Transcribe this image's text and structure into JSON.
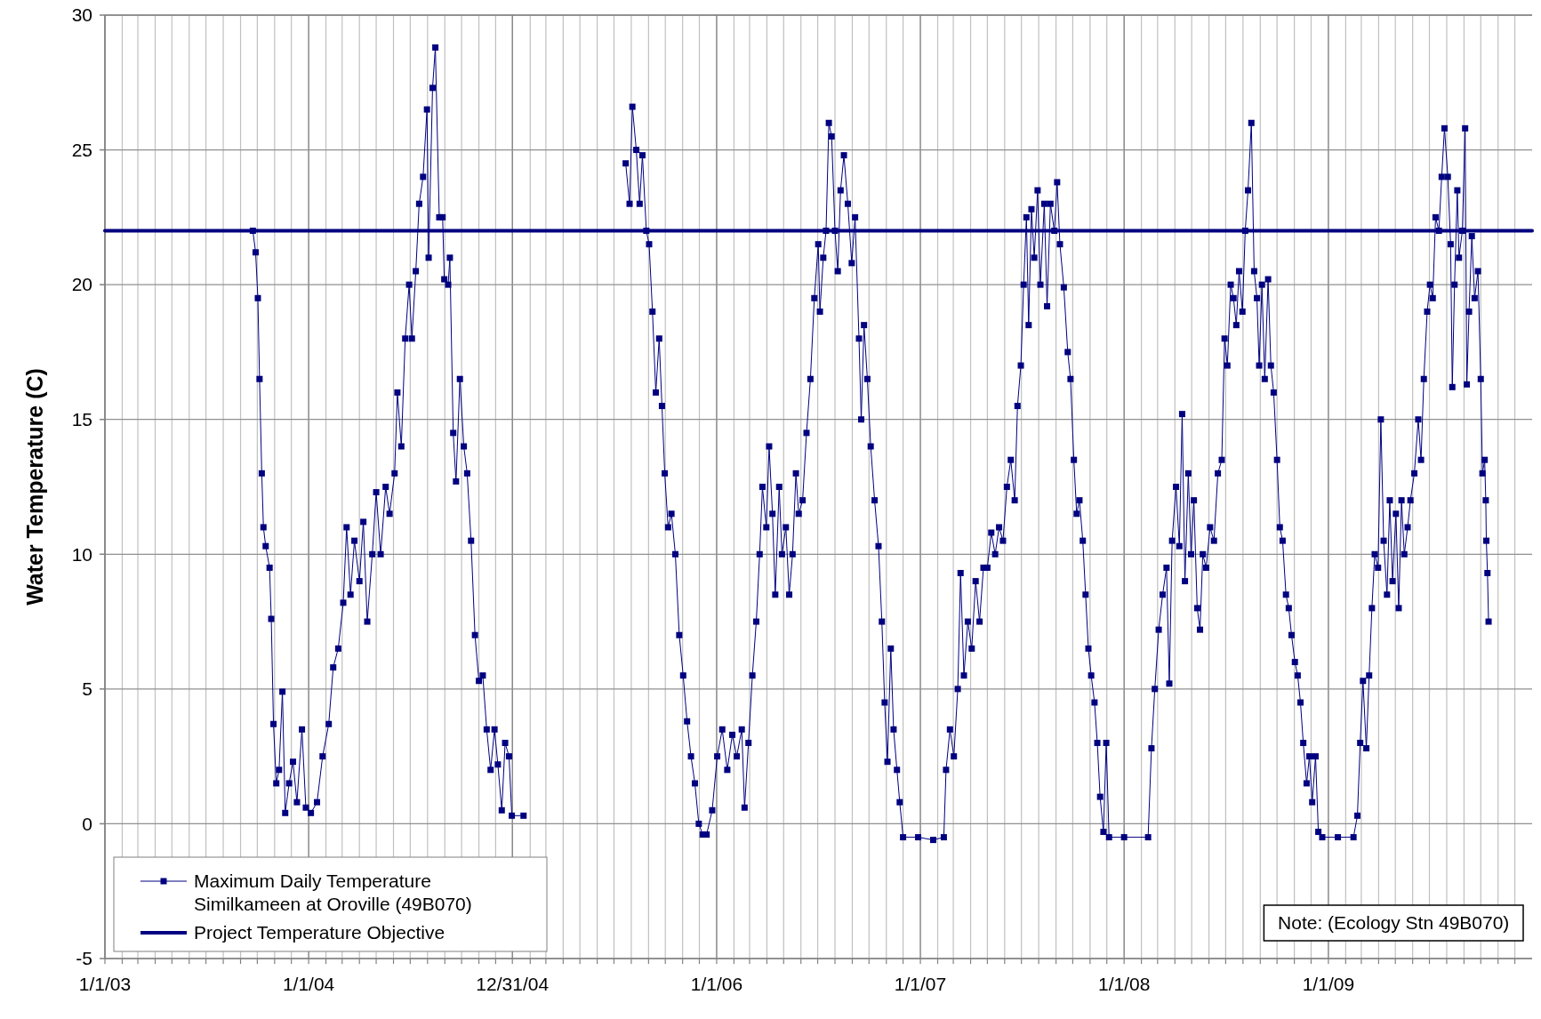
{
  "chart_data": {
    "type": "line",
    "ylabel": "Water Temperature (C)",
    "ylim": [
      -5,
      30
    ],
    "yticks": [
      -5,
      0,
      5,
      10,
      15,
      20,
      25,
      30
    ],
    "xlim": [
      "2003-01-01",
      "2010-01-01"
    ],
    "xticks": [
      {
        "value": "2003-01-01",
        "label": "1/1/03"
      },
      {
        "value": "2003-02-01",
        "label": null
      },
      {
        "value": "2003-03-01",
        "label": null
      },
      {
        "value": "2003-04-01",
        "label": null
      },
      {
        "value": "2003-05-01",
        "label": null
      },
      {
        "value": "2003-06-01",
        "label": null
      },
      {
        "value": "2003-07-01",
        "label": null
      },
      {
        "value": "2003-08-01",
        "label": null
      },
      {
        "value": "2003-09-01",
        "label": null
      },
      {
        "value": "2003-10-01",
        "label": null
      },
      {
        "value": "2003-11-01",
        "label": null
      },
      {
        "value": "2003-12-01",
        "label": null
      },
      {
        "value": "2004-01-01",
        "label": "1/1/04"
      },
      {
        "value": "2004-02-01",
        "label": null
      },
      {
        "value": "2004-03-01",
        "label": null
      },
      {
        "value": "2004-04-01",
        "label": null
      },
      {
        "value": "2004-05-01",
        "label": null
      },
      {
        "value": "2004-06-01",
        "label": null
      },
      {
        "value": "2004-07-01",
        "label": null
      },
      {
        "value": "2004-08-01",
        "label": null
      },
      {
        "value": "2004-09-01",
        "label": null
      },
      {
        "value": "2004-10-01",
        "label": null
      },
      {
        "value": "2004-11-01",
        "label": null
      },
      {
        "value": "2004-12-01",
        "label": null
      },
      {
        "value": "2004-12-31",
        "label": "12/31/04"
      },
      {
        "value": "2005-02-01",
        "label": null
      },
      {
        "value": "2005-03-01",
        "label": null
      },
      {
        "value": "2005-04-01",
        "label": null
      },
      {
        "value": "2005-05-01",
        "label": null
      },
      {
        "value": "2005-06-01",
        "label": null
      },
      {
        "value": "2005-07-01",
        "label": null
      },
      {
        "value": "2005-08-01",
        "label": null
      },
      {
        "value": "2005-09-01",
        "label": null
      },
      {
        "value": "2005-10-01",
        "label": null
      },
      {
        "value": "2005-11-01",
        "label": null
      },
      {
        "value": "2005-12-01",
        "label": null
      },
      {
        "value": "2006-01-01",
        "label": "1/1/06"
      },
      {
        "value": "2006-02-01",
        "label": null
      },
      {
        "value": "2006-03-01",
        "label": null
      },
      {
        "value": "2006-04-01",
        "label": null
      },
      {
        "value": "2006-05-01",
        "label": null
      },
      {
        "value": "2006-06-01",
        "label": null
      },
      {
        "value": "2006-07-01",
        "label": null
      },
      {
        "value": "2006-08-01",
        "label": null
      },
      {
        "value": "2006-09-01",
        "label": null
      },
      {
        "value": "2006-10-01",
        "label": null
      },
      {
        "value": "2006-11-01",
        "label": null
      },
      {
        "value": "2006-12-01",
        "label": null
      },
      {
        "value": "2007-01-01",
        "label": "1/1/07"
      },
      {
        "value": "2007-02-01",
        "label": null
      },
      {
        "value": "2007-03-01",
        "label": null
      },
      {
        "value": "2007-04-01",
        "label": null
      },
      {
        "value": "2007-05-01",
        "label": null
      },
      {
        "value": "2007-06-01",
        "label": null
      },
      {
        "value": "2007-07-01",
        "label": null
      },
      {
        "value": "2007-08-01",
        "label": null
      },
      {
        "value": "2007-09-01",
        "label": null
      },
      {
        "value": "2007-10-01",
        "label": null
      },
      {
        "value": "2007-11-01",
        "label": null
      },
      {
        "value": "2007-12-01",
        "label": null
      },
      {
        "value": "2008-01-01",
        "label": "1/1/08"
      },
      {
        "value": "2008-02-01",
        "label": null
      },
      {
        "value": "2008-03-01",
        "label": null
      },
      {
        "value": "2008-04-01",
        "label": null
      },
      {
        "value": "2008-05-01",
        "label": null
      },
      {
        "value": "2008-06-01",
        "label": null
      },
      {
        "value": "2008-07-01",
        "label": null
      },
      {
        "value": "2008-08-01",
        "label": null
      },
      {
        "value": "2008-09-01",
        "label": null
      },
      {
        "value": "2008-10-01",
        "label": null
      },
      {
        "value": "2008-11-01",
        "label": null
      },
      {
        "value": "2008-12-01",
        "label": null
      },
      {
        "value": "2009-01-01",
        "label": "1/1/09"
      },
      {
        "value": "2009-02-01",
        "label": null
      },
      {
        "value": "2009-03-01",
        "label": null
      },
      {
        "value": "2009-04-01",
        "label": null
      },
      {
        "value": "2009-05-01",
        "label": null
      },
      {
        "value": "2009-06-01",
        "label": null
      },
      {
        "value": "2009-07-01",
        "label": null
      },
      {
        "value": "2009-08-01",
        "label": null
      },
      {
        "value": "2009-09-01",
        "label": null
      },
      {
        "value": "2009-10-01",
        "label": null
      },
      {
        "value": "2009-11-01",
        "label": null
      },
      {
        "value": "2009-12-01",
        "label": null
      }
    ],
    "grid": true,
    "legend": "bottom left",
    "annotations": [
      "Note: (Ecology Stn 49B070)"
    ],
    "series": [
      {
        "name": "Maximum Daily Temperature Similkameen at Oroville (49B070)",
        "color": "#000080",
        "marker": "square",
        "x": [
          "2003-09-23",
          "2003-09-28",
          "2003-10-02",
          "2003-10-05",
          "2003-10-09",
          "2003-10-12",
          "2003-10-16",
          "2003-10-23",
          "2003-10-26",
          "2003-10-30",
          "2003-11-04",
          "2003-11-09",
          "2003-11-15",
          "2003-11-20",
          "2003-11-27",
          "2003-12-04",
          "2003-12-11",
          "2003-12-20",
          "2003-12-27",
          "2004-01-05",
          "2004-01-16",
          "2004-01-26",
          "2004-02-06",
          "2004-02-14",
          "2004-02-23",
          "2004-03-03",
          "2004-03-09",
          "2004-03-16",
          "2004-03-23",
          "2004-04-01",
          "2004-04-08",
          "2004-04-15",
          "2004-04-24",
          "2004-05-01",
          "2004-05-09",
          "2004-05-18",
          "2004-05-25",
          "2004-06-03",
          "2004-06-08",
          "2004-06-15",
          "2004-06-22",
          "2004-06-29",
          "2004-07-04",
          "2004-07-11",
          "2004-07-17",
          "2004-07-24",
          "2004-07-31",
          "2004-08-03",
          "2004-08-10",
          "2004-08-15",
          "2004-08-22",
          "2004-08-28",
          "2004-08-31",
          "2004-09-07",
          "2004-09-10",
          "2004-09-16",
          "2004-09-21",
          "2004-09-28",
          "2004-10-05",
          "2004-10-11",
          "2004-10-18",
          "2004-10-25",
          "2004-11-01",
          "2004-11-08",
          "2004-11-15",
          "2004-11-22",
          "2004-11-29",
          "2004-12-05",
          "2004-12-12",
          "2004-12-18",
          "2004-12-25",
          "2004-12-30",
          "2005-01-20",
          "2005-04-01",
          "2005-07-22",
          "2005-07-29",
          "2005-08-03",
          "2005-08-10",
          "2005-08-16",
          "2005-08-21",
          "2005-08-28",
          "2005-09-02",
          "2005-09-08",
          "2005-09-14",
          "2005-09-20",
          "2005-09-25",
          "2005-09-30",
          "2005-10-06",
          "2005-10-12",
          "2005-10-19",
          "2005-10-26",
          "2005-11-02",
          "2005-11-09",
          "2005-11-16",
          "2005-11-23",
          "2005-11-30",
          "2005-12-07",
          "2005-12-14",
          "2005-12-24",
          "2006-01-02",
          "2006-01-11",
          "2006-01-20",
          "2006-01-29",
          "2006-02-06",
          "2006-02-15",
          "2006-02-20",
          "2006-02-27",
          "2006-03-06",
          "2006-03-13",
          "2006-03-19",
          "2006-03-24",
          "2006-03-31",
          "2006-04-05",
          "2006-04-11",
          "2006-04-16",
          "2006-04-23",
          "2006-04-28",
          "2006-05-05",
          "2006-05-11",
          "2006-05-17",
          "2006-05-23",
          "2006-05-28",
          "2006-06-04",
          "2006-06-11",
          "2006-06-18",
          "2006-06-25",
          "2006-07-02",
          "2006-07-05",
          "2006-07-11",
          "2006-07-16",
          "2006-07-21",
          "2006-07-26",
          "2006-08-01",
          "2006-08-06",
          "2006-08-11",
          "2006-08-17",
          "2006-08-24",
          "2006-08-31",
          "2006-09-06",
          "2006-09-13",
          "2006-09-17",
          "2006-09-22",
          "2006-09-28",
          "2006-10-04",
          "2006-10-11",
          "2006-10-18",
          "2006-10-24",
          "2006-10-29",
          "2006-11-03",
          "2006-11-09",
          "2006-11-14",
          "2006-11-20",
          "2006-11-25",
          "2006-12-01",
          "2006-12-28",
          "2007-01-24",
          "2007-02-12",
          "2007-02-16",
          "2007-02-23",
          "2007-03-02",
          "2007-03-09",
          "2007-03-14",
          "2007-03-20",
          "2007-03-27",
          "2007-04-03",
          "2007-04-10",
          "2007-04-17",
          "2007-04-24",
          "2007-05-01",
          "2007-05-08",
          "2007-05-15",
          "2007-05-22",
          "2007-05-29",
          "2007-06-05",
          "2007-06-12",
          "2007-06-19",
          "2007-06-24",
          "2007-06-30",
          "2007-07-05",
          "2007-07-10",
          "2007-07-14",
          "2007-07-19",
          "2007-07-24",
          "2007-07-30",
          "2007-08-04",
          "2007-08-11",
          "2007-08-16",
          "2007-08-22",
          "2007-08-29",
          "2007-09-03",
          "2007-09-08",
          "2007-09-15",
          "2007-09-22",
          "2007-09-27",
          "2007-10-03",
          "2007-10-08",
          "2007-10-13",
          "2007-10-19",
          "2007-10-24",
          "2007-10-29",
          "2007-11-03",
          "2007-11-09",
          "2007-11-14",
          "2007-11-19",
          "2007-11-25",
          "2007-11-30",
          "2007-12-05",
          "2008-01-01",
          "2008-02-13",
          "2008-02-19",
          "2008-02-25",
          "2008-03-03",
          "2008-03-10",
          "2008-03-17",
          "2008-03-22",
          "2008-03-27",
          "2008-04-03",
          "2008-04-09",
          "2008-04-14",
          "2008-04-19",
          "2008-04-25",
          "2008-04-30",
          "2008-05-05",
          "2008-05-11",
          "2008-05-16",
          "2008-05-21",
          "2008-05-27",
          "2008-06-03",
          "2008-06-10",
          "2008-06-17",
          "2008-06-24",
          "2008-06-29",
          "2008-07-04",
          "2008-07-10",
          "2008-07-15",
          "2008-07-20",
          "2008-07-25",
          "2008-07-31",
          "2008-08-05",
          "2008-08-10",
          "2008-08-16",
          "2008-08-21",
          "2008-08-26",
          "2008-08-30",
          "2008-09-04",
          "2008-09-09",
          "2008-09-15",
          "2008-09-20",
          "2008-09-25",
          "2008-10-01",
          "2008-10-06",
          "2008-10-11",
          "2008-10-17",
          "2008-10-22",
          "2008-10-27",
          "2008-11-02",
          "2008-11-07",
          "2008-11-12",
          "2008-11-17",
          "2008-11-23",
          "2008-11-28",
          "2008-12-03",
          "2008-12-09",
          "2008-12-14",
          "2008-12-21",
          "2009-01-18",
          "2009-02-15",
          "2009-02-22",
          "2009-02-27",
          "2009-03-04",
          "2009-03-10",
          "2009-03-15",
          "2009-03-20",
          "2009-03-25",
          "2009-03-31",
          "2009-04-05",
          "2009-04-10",
          "2009-04-16",
          "2009-04-21",
          "2009-04-26",
          "2009-05-02",
          "2009-05-07",
          "2009-05-12",
          "2009-05-17",
          "2009-05-23",
          "2009-05-28",
          "2009-06-04",
          "2009-06-11",
          "2009-06-16",
          "2009-06-21",
          "2009-06-27",
          "2009-07-02",
          "2009-07-07",
          "2009-07-12",
          "2009-07-18",
          "2009-07-23",
          "2009-07-28",
          "2009-08-03",
          "2009-08-08",
          "2009-08-11",
          "2009-08-15",
          "2009-08-20",
          "2009-08-23",
          "2009-08-29",
          "2009-09-03",
          "2009-09-06",
          "2009-09-10",
          "2009-09-15",
          "2009-09-20",
          "2009-09-26",
          "2009-10-01",
          "2009-10-04",
          "2009-10-08",
          "2009-10-10",
          "2009-10-11",
          "2009-10-13",
          "2009-10-15"
        ],
        "values": [
          22.0,
          21.2,
          19.5,
          16.5,
          13.0,
          11.0,
          10.3,
          9.5,
          7.6,
          3.7,
          1.5,
          2.0,
          4.9,
          0.4,
          1.5,
          2.3,
          0.8,
          3.5,
          0.6,
          0.4,
          0.8,
          2.5,
          3.7,
          5.8,
          6.5,
          8.2,
          11.0,
          8.5,
          10.5,
          9.0,
          11.2,
          7.5,
          10.0,
          12.3,
          10.0,
          12.5,
          11.5,
          13.0,
          16.0,
          14.0,
          18.0,
          20.0,
          18.0,
          20.5,
          23.0,
          24.0,
          26.5,
          21.0,
          27.3,
          28.8,
          22.5,
          22.5,
          20.2,
          20.0,
          21.0,
          14.5,
          12.7,
          16.5,
          14.0,
          13.0,
          10.5,
          7.0,
          5.3,
          5.5,
          3.5,
          2.0,
          3.5,
          2.2,
          0.5,
          3.0,
          2.5,
          0.3,
          0.3,
          null,
          24.5,
          23.0,
          26.6,
          25.0,
          23.0,
          24.8,
          22.0,
          21.5,
          19.0,
          16.0,
          18.0,
          15.5,
          13.0,
          11.0,
          11.5,
          10.0,
          7.0,
          5.5,
          3.8,
          2.5,
          1.5,
          0.0,
          -0.4,
          -0.4,
          0.5,
          2.5,
          3.5,
          2.0,
          3.3,
          2.5,
          3.5,
          0.6,
          3.0,
          5.5,
          7.5,
          10.0,
          12.5,
          11.0,
          14.0,
          11.5,
          8.5,
          12.5,
          10.0,
          11.0,
          8.5,
          10.0,
          13.0,
          11.5,
          12.0,
          14.5,
          16.5,
          19.5,
          21.5,
          19.0,
          21.0,
          22.0,
          26.0,
          25.5,
          22.0,
          20.5,
          23.5,
          24.8,
          23.0,
          20.8,
          22.5,
          18.0,
          15.0,
          18.5,
          16.5,
          14.0,
          12.0,
          10.3,
          7.5,
          4.5,
          2.3,
          6.5,
          3.5,
          2.0,
          0.8,
          -0.5,
          -0.5,
          -0.6,
          -0.5,
          2.0,
          3.5,
          2.5,
          5.0,
          9.3,
          5.5,
          7.5,
          6.5,
          9.0,
          7.5,
          9.5,
          9.5,
          10.8,
          10.0,
          11.0,
          10.5,
          12.5,
          13.5,
          12.0,
          15.5,
          17.0,
          20.0,
          22.5,
          18.5,
          22.8,
          21.0,
          23.5,
          20.0,
          23.0,
          19.2,
          23.0,
          22.0,
          23.8,
          21.5,
          19.9,
          17.5,
          16.5,
          13.5,
          11.5,
          12.0,
          10.5,
          8.5,
          6.5,
          5.5,
          4.5,
          3.0,
          1.0,
          -0.3,
          3.0,
          -0.5,
          -0.5,
          -0.5,
          2.8,
          5.0,
          7.2,
          8.5,
          9.5,
          5.2,
          10.5,
          12.5,
          10.3,
          15.2,
          9.0,
          13.0,
          10.0,
          12.0,
          8.0,
          7.2,
          10.0,
          9.5,
          11.0,
          10.5,
          13.0,
          13.5,
          18.0,
          17.0,
          20.0,
          19.5,
          18.5,
          20.5,
          19.0,
          22.0,
          23.5,
          26.0,
          20.5,
          19.5,
          17.0,
          20.0,
          16.5,
          20.2,
          17.0,
          16.0,
          13.5,
          11.0,
          10.5,
          8.5,
          8.0,
          7.0,
          6.0,
          5.5,
          4.5,
          3.0,
          1.5,
          2.5,
          0.8,
          2.5,
          -0.3,
          -0.5,
          -0.5,
          -0.5,
          0.3,
          3.0,
          5.3,
          2.8,
          5.5,
          8.0,
          10.0,
          9.5,
          15.0,
          10.5,
          8.5,
          12.0,
          9.0,
          11.5,
          8.0,
          12.0,
          10.0,
          11.0,
          12.0,
          13.0,
          15.0,
          13.5,
          16.5,
          19.0,
          20.0,
          19.5,
          22.5,
          22.0,
          24.0,
          25.8,
          24.0,
          21.5,
          16.2,
          20.0,
          23.5,
          21.0,
          22.0,
          25.8,
          16.3,
          19.0,
          21.8,
          19.5,
          20.5,
          16.5,
          13.0,
          13.5,
          12.0,
          10.5,
          9.3,
          7.5
        ]
      },
      {
        "name": "Project Temperature Objective",
        "color": "#000080",
        "marker": "none",
        "x": [
          "2003-01-01",
          "2010-01-01"
        ],
        "values": [
          22,
          22
        ]
      }
    ]
  }
}
